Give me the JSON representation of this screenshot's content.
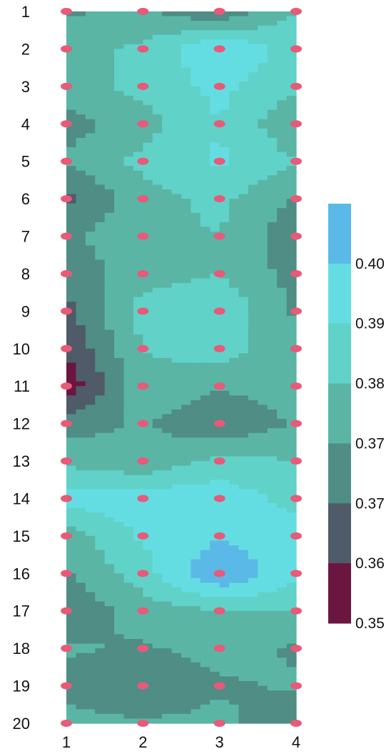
{
  "chart_data": {
    "type": "heatmap",
    "x_ticks": [
      "1",
      "2",
      "3",
      "4"
    ],
    "y_ticks": [
      "1",
      "2",
      "3",
      "4",
      "5",
      "6",
      "7",
      "8",
      "9",
      "10",
      "11",
      "12",
      "13",
      "14",
      "15",
      "16",
      "17",
      "18",
      "19",
      "20"
    ],
    "xlim": [
      1,
      4
    ],
    "ylim": [
      1,
      20
    ],
    "y_inverted": true,
    "grid": false,
    "legend": "colorbar-right",
    "grid_values": [
      [
        0.37,
        0.373,
        0.364,
        0.378
      ],
      [
        0.376,
        0.379,
        0.392,
        0.382
      ],
      [
        0.375,
        0.38,
        0.387,
        0.379
      ],
      [
        0.368,
        0.375,
        0.385,
        0.372
      ],
      [
        0.372,
        0.38,
        0.386,
        0.378
      ],
      [
        0.362,
        0.375,
        0.38,
        0.37
      ],
      [
        0.37,
        0.376,
        0.378,
        0.366
      ],
      [
        0.366,
        0.375,
        0.378,
        0.368
      ],
      [
        0.362,
        0.381,
        0.384,
        0.37
      ],
      [
        0.358,
        0.378,
        0.382,
        0.372
      ],
      [
        0.352,
        0.376,
        0.372,
        0.374
      ],
      [
        0.368,
        0.372,
        0.364,
        0.372
      ],
      [
        0.376,
        0.372,
        0.38,
        0.378
      ],
      [
        0.388,
        0.389,
        0.39,
        0.382
      ],
      [
        0.374,
        0.386,
        0.392,
        0.388
      ],
      [
        0.37,
        0.382,
        0.401,
        0.387
      ],
      [
        0.366,
        0.374,
        0.378,
        0.378
      ],
      [
        0.372,
        0.37,
        0.374,
        0.37
      ],
      [
        0.368,
        0.364,
        0.37,
        0.372
      ],
      [
        0.374,
        0.372,
        0.373,
        0.366
      ]
    ],
    "colorbar": {
      "tick_labels": [
        "0.40",
        "0.39",
        "0.38",
        "0.37",
        "0.37",
        "0.36",
        "0.35"
      ],
      "bands": [
        {
          "min": 0.35,
          "max": 0.357,
          "color": "#6b1640"
        },
        {
          "min": 0.357,
          "max": 0.364,
          "color": "#4f5b69"
        },
        {
          "min": 0.364,
          "max": 0.371,
          "color": "#4f8d85"
        },
        {
          "min": 0.371,
          "max": 0.378,
          "color": "#5ab5a5"
        },
        {
          "min": 0.378,
          "max": 0.385,
          "color": "#60d2c8"
        },
        {
          "min": 0.385,
          "max": 0.393,
          "color": "#64dde2"
        },
        {
          "min": 0.393,
          "max": 0.41,
          "color": "#5ab9e6"
        }
      ]
    },
    "marker_color": "#e85a78"
  }
}
